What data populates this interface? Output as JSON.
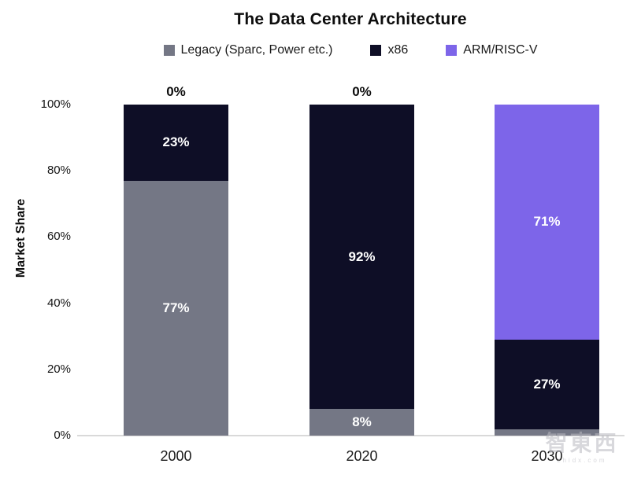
{
  "watermark": {
    "logo_text": "智東西",
    "url_text": "zhidx.com"
  },
  "chart_data": {
    "type": "bar",
    "stacked": true,
    "title": "The Data Center Architecture",
    "xlabel": "",
    "ylabel": "Market Share",
    "categories": [
      "2000",
      "2020",
      "2030"
    ],
    "series": [
      {
        "name": "Legacy (Sparc, Power etc.)",
        "color": "#747785",
        "values": [
          77,
          8,
          2
        ]
      },
      {
        "name": "x86",
        "color": "#0e0e26",
        "values": [
          23,
          92,
          27
        ]
      },
      {
        "name": "ARM/RISC-V",
        "color": "#7d65e9",
        "values": [
          0,
          0,
          71
        ]
      }
    ],
    "ylim": [
      0,
      100
    ],
    "yticks": [
      "0%",
      "20%",
      "40%",
      "60%",
      "80%",
      "100%"
    ],
    "legend_position": "top",
    "grid": false,
    "bar_label_format": "percent",
    "zero_values_labeled_above_bars": true
  }
}
